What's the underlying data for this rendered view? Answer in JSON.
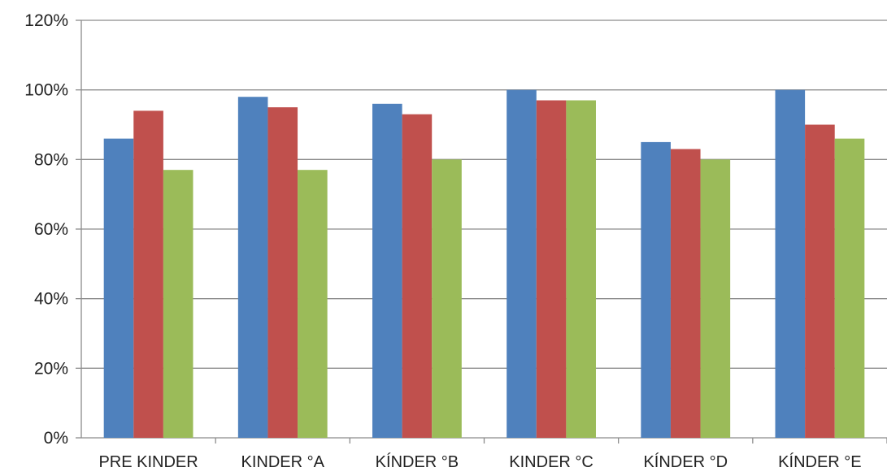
{
  "chart_data": {
    "type": "bar",
    "categories": [
      "PRE KINDER",
      "KINDER °A",
      "KÍNDER °B",
      "KINDER °C",
      "KÍNDER °D",
      "KÍNDER °E"
    ],
    "series": [
      {
        "values": [
          0.86,
          0.98,
          0.96,
          1.0,
          0.85,
          1.0
        ],
        "color": "#4F81BD"
      },
      {
        "values": [
          0.94,
          0.95,
          0.93,
          0.97,
          0.83,
          0.9
        ],
        "color": "#C0504D"
      },
      {
        "values": [
          0.77,
          0.77,
          0.8,
          0.97,
          0.8,
          0.86
        ],
        "color": "#9BBB59"
      }
    ],
    "y_ticks": [
      "0%",
      "20%",
      "40%",
      "60%",
      "80%",
      "100%",
      "120%"
    ],
    "ylim": [
      0,
      1.2
    ],
    "grid": true,
    "legend": "none",
    "title": "",
    "xlabel": "",
    "ylabel": ""
  }
}
